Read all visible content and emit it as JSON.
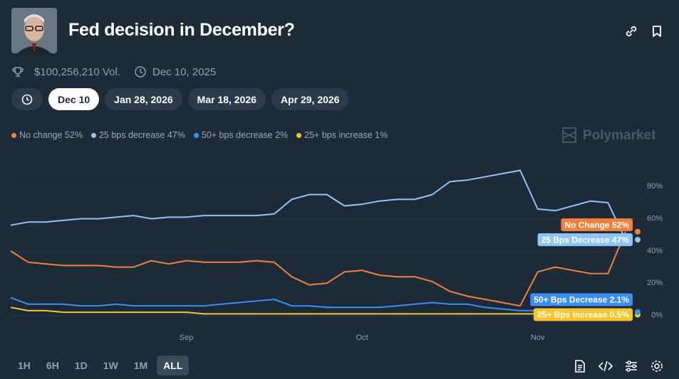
{
  "header": {
    "title": "Fed decision in December?",
    "volume": "$100,256,210 Vol.",
    "date": "Dec 10, 2025"
  },
  "tabs": [
    "Dec 10",
    "Jan 28, 2026",
    "Mar 18, 2026",
    "Apr 29, 2026"
  ],
  "watermark": "Polymarket",
  "range_buttons": [
    "1H",
    "6H",
    "1D",
    "1W",
    "1M",
    "ALL"
  ],
  "chart_data": {
    "type": "line",
    "categories": [
      null,
      null,
      null,
      null,
      null,
      null,
      null,
      null,
      null,
      null,
      "Sep",
      null,
      null,
      null,
      null,
      null,
      null,
      null,
      null,
      null,
      "Oct",
      null,
      null,
      null,
      null,
      null,
      null,
      null,
      null,
      null,
      "Nov",
      null,
      null,
      null,
      null,
      null
    ],
    "ylim": [
      -5,
      96
    ],
    "yticks": [
      {
        "value": 0,
        "label": "0%"
      },
      {
        "value": 20,
        "label": "20%"
      },
      {
        "value": 40,
        "label": "40%"
      },
      {
        "value": 60,
        "label": "60%"
      },
      {
        "value": 80,
        "label": "80%"
      }
    ],
    "grid": true,
    "series": [
      {
        "name": "No change 52%",
        "end_label": "No Change 52%",
        "color": "#f0803c",
        "values": [
          40,
          33,
          32,
          31,
          31,
          31,
          30,
          30,
          34,
          32,
          34,
          33,
          33,
          33,
          34,
          33,
          24,
          19,
          20,
          27,
          28,
          25,
          24,
          24,
          21,
          15,
          12,
          10,
          8,
          6,
          27,
          30,
          28,
          26,
          26,
          52
        ]
      },
      {
        "name": "25 bps decrease 47%",
        "end_label": "25 Bps Decrease 47%",
        "color": "#8ec5f5",
        "values": [
          56,
          58,
          58,
          59,
          60,
          60,
          61,
          62,
          60,
          61,
          61,
          62,
          62,
          62,
          62,
          63,
          72,
          75,
          75,
          68,
          69,
          71,
          72,
          72,
          75,
          83,
          84,
          86,
          88,
          90,
          66,
          65,
          68,
          71,
          70,
          47
        ]
      },
      {
        "name": "50+ bps decrease 2%",
        "end_label": "50+ Bps Decrease 2.1%",
        "color": "#3b8ef5",
        "values": [
          11,
          7,
          7,
          7,
          6,
          6,
          7,
          6,
          6,
          6,
          6,
          6,
          7,
          8,
          9,
          10,
          6,
          6,
          5,
          5,
          5,
          5,
          6,
          7,
          8,
          7,
          7,
          5,
          4,
          3,
          3,
          3,
          3,
          3,
          2,
          2.1
        ]
      },
      {
        "name": "25+ bps increase 1%",
        "end_label": "25+ Bps Increase 0.5%",
        "color": "#f7c62a",
        "values": [
          5,
          3,
          3,
          2,
          2,
          2,
          2,
          2,
          2,
          2,
          2,
          1,
          1,
          1,
          1,
          1,
          1,
          1,
          1,
          1,
          1,
          1,
          1,
          1,
          1,
          1,
          1,
          1,
          1,
          1,
          1,
          1,
          1,
          1,
          1,
          0.5
        ]
      }
    ]
  }
}
